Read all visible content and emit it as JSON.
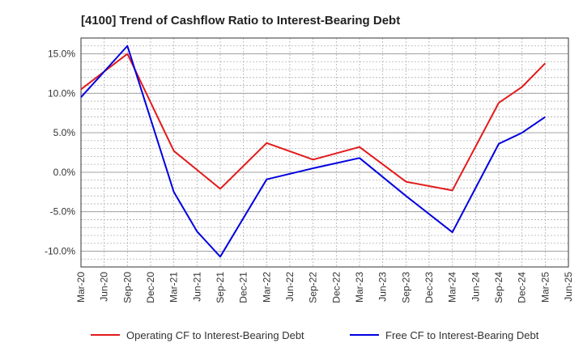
{
  "chart_data": {
    "type": "line",
    "title": "[4100]  Trend of Cashflow Ratio to Interest-Bearing Debt",
    "xlabel": "",
    "ylabel": "",
    "x_ticks": [
      "Mar-20",
      "Jun-20",
      "Sep-20",
      "Dec-20",
      "Mar-21",
      "Jun-21",
      "Sep-21",
      "Dec-21",
      "Mar-22",
      "Jun-22",
      "Sep-22",
      "Dec-22",
      "Mar-23",
      "Jun-23",
      "Sep-23",
      "Dec-23",
      "Mar-24",
      "Jun-24",
      "Sep-24",
      "Dec-24",
      "Mar-25",
      "Jun-25"
    ],
    "y_ticks": [
      "15.0%",
      "10.0%",
      "5.0%",
      "0.0%",
      "-5.0%",
      "-10.0%"
    ],
    "ylim": [
      -12.0,
      17.0
    ],
    "grid": true,
    "legend_position": "bottom",
    "series": [
      {
        "name": "Operating CF to Interest-Bearing Debt",
        "color": "#e31a1c",
        "points": [
          {
            "x": "Mar-20",
            "y": 10.5
          },
          {
            "x": "Sep-20",
            "y": 15.0
          },
          {
            "x": "Mar-21",
            "y": 2.7
          },
          {
            "x": "Sep-21",
            "y": -2.1
          },
          {
            "x": "Mar-22",
            "y": 3.7
          },
          {
            "x": "Sep-22",
            "y": 1.6
          },
          {
            "x": "Mar-23",
            "y": 3.2
          },
          {
            "x": "Sep-23",
            "y": -1.2
          },
          {
            "x": "Mar-24",
            "y": -2.3
          },
          {
            "x": "Sep-24",
            "y": 8.8
          },
          {
            "x": "Dec-24",
            "y": 10.8
          },
          {
            "x": "Mar-25",
            "y": 13.8
          }
        ]
      },
      {
        "name": "Free CF to Interest-Bearing Debt",
        "color": "#0000e0",
        "points": [
          {
            "x": "Mar-20",
            "y": 9.5
          },
          {
            "x": "Sep-20",
            "y": 16.0
          },
          {
            "x": "Mar-21",
            "y": -2.5
          },
          {
            "x": "Jun-21",
            "y": -7.5
          },
          {
            "x": "Sep-21",
            "y": -10.7
          },
          {
            "x": "Mar-22",
            "y": -0.9
          },
          {
            "x": "Sep-22",
            "y": 0.5
          },
          {
            "x": "Mar-23",
            "y": 1.8
          },
          {
            "x": "Sep-23",
            "y": -3.0
          },
          {
            "x": "Mar-24",
            "y": -7.6
          },
          {
            "x": "Sep-24",
            "y": 3.6
          },
          {
            "x": "Dec-24",
            "y": 5.0
          },
          {
            "x": "Mar-25",
            "y": 7.0
          }
        ]
      }
    ]
  }
}
